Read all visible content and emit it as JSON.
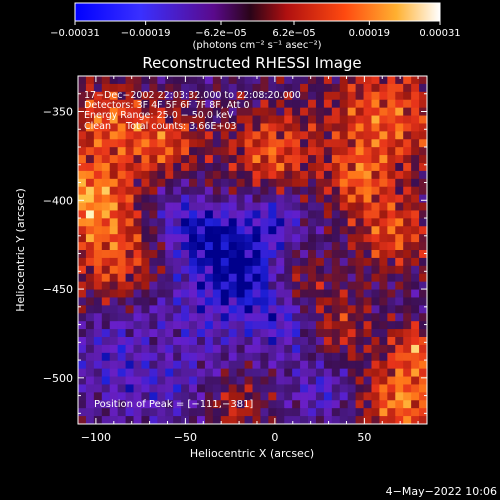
{
  "chart_data": {
    "type": "heatmap",
    "title": "Reconstructed RHESSI Image",
    "xlabel": "Heliocentric X (arcsec)",
    "ylabel": "Heliocentric Y (arcsec)",
    "xlim": [
      -110,
      85
    ],
    "ylim": [
      -526,
      -330
    ],
    "x_ticks": [
      -100,
      -50,
      0,
      50
    ],
    "x_tick_labels": [
      "−100",
      "−50",
      "0",
      "50"
    ],
    "y_ticks": [
      -350,
      -400,
      -450,
      -500
    ],
    "y_tick_labels": [
      "−350",
      "−400",
      "−450",
      "−500"
    ],
    "colorbar": {
      "min": -0.00031,
      "max": 0.00031,
      "tick_values": [
        -0.00031,
        -0.00019,
        -6.2e-05,
        6.2e-05,
        0.00019,
        0.00031
      ],
      "tick_labels": [
        "−0.00031",
        "−0.00019",
        "−6.2e−05",
        "6.2e−05",
        "0.00019",
        "0.00031"
      ],
      "unit_label": "(photons cm⁻² s⁻¹ asec⁻²)"
    },
    "annotations": [
      "17−Dec−2002 22:03:32.000 to 22:08:20.000",
      "Detectors: 3F 4F 5F 6F 7F 8F, Att 0",
      "Energy Range: 25.0 − 50.0 keV",
      "Clean     Total counts: 3.66E+03"
    ],
    "peak_label": "Position of Peak = [−111,−381]",
    "peak": {
      "x": -111,
      "y": -381
    },
    "grid": false,
    "colormap_stops": [
      "#00008c",
      "#2222dd",
      "#6a1fc8",
      "#4a1a8a",
      "#3c0e50",
      "#a01a10",
      "#e8341a",
      "#ff7a1a",
      "#ffc040",
      "#ffffd8"
    ]
  },
  "footer": {
    "date": "4−May−2022 10:06"
  }
}
